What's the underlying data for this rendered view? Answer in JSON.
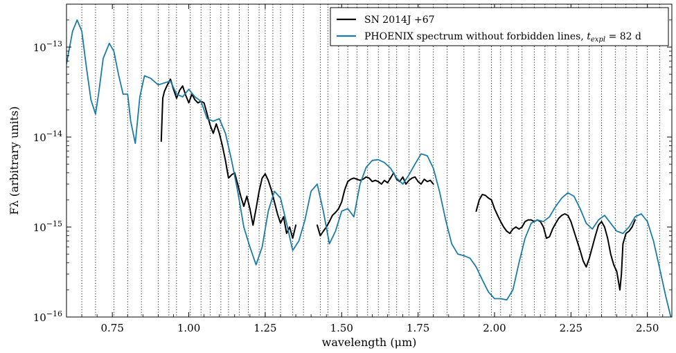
{
  "chart_data": {
    "type": "line",
    "title": "",
    "xlabel": "wavelength (μm)",
    "ylabel": "Fλ (arbitrary units)",
    "xlim": [
      0.6,
      2.58
    ],
    "ylim": [
      1e-16,
      3e-13
    ],
    "yscale": "log",
    "grid": "vertical dotted lines at line wavelengths",
    "x_ticks": [
      0.75,
      1.0,
      1.25,
      1.5,
      1.75,
      2.0,
      2.25,
      2.5
    ],
    "x_tick_labels": [
      "0.75",
      "1.00",
      "1.25",
      "1.50",
      "1.75",
      "2.00",
      "2.25",
      "2.50"
    ],
    "y_ticks": [
      1e-16,
      1e-15,
      1e-14,
      1e-13
    ],
    "y_tick_labels": [
      {
        "base": "10",
        "exp": "−16"
      },
      {
        "base": "10",
        "exp": "−15"
      },
      {
        "base": "10",
        "exp": "−14"
      },
      {
        "base": "10",
        "exp": "−13"
      }
    ],
    "vlines": [
      0.65,
      0.695,
      0.755,
      0.8,
      0.845,
      0.9,
      0.935,
      0.96,
      1.005,
      1.04,
      1.07,
      1.105,
      1.13,
      1.165,
      1.195,
      1.23,
      1.25,
      1.275,
      1.3,
      1.34,
      1.375,
      1.43,
      1.455,
      1.49,
      1.52,
      1.55,
      1.585,
      1.62,
      1.655,
      1.68,
      1.72,
      1.755,
      1.8,
      1.845,
      1.9,
      1.95,
      1.99,
      2.02,
      2.055,
      2.09,
      2.13,
      2.165,
      2.2,
      2.24,
      2.275,
      2.31,
      2.35,
      2.395,
      2.43,
      2.465,
      2.5,
      2.54
    ],
    "legend": {
      "placement": "top-right",
      "entries": [
        {
          "label": "SN 2014J +67",
          "color": "#000000"
        },
        {
          "label": "PHOENIX spectrum without forbidden lines, ",
          "math_var": "t",
          "math_sub": "expl",
          "math_tail": " = 82 d",
          "color": "#1a7bab"
        }
      ]
    },
    "series": [
      {
        "name": "SN 2014J +67",
        "color": "#000000",
        "segments": [
          {
            "x": [
              0.91,
              0.915,
              0.92,
              0.925,
              0.93,
              0.94,
              0.95,
              0.96,
              0.97,
              0.98,
              0.99,
              1.0,
              1.01,
              1.02,
              1.03,
              1.04,
              1.05,
              1.06,
              1.07,
              1.08,
              1.09,
              1.1,
              1.11,
              1.12,
              1.13,
              1.14,
              1.15,
              1.16,
              1.17,
              1.18,
              1.19,
              1.2,
              1.21,
              1.22,
              1.23,
              1.24,
              1.25,
              1.26,
              1.27,
              1.28,
              1.29,
              1.3,
              1.31,
              1.32,
              1.33,
              1.34,
              1.35
            ],
            "y": [
              9e-15,
              2.7e-14,
              3.2e-14,
              3.5e-14,
              3.8e-14,
              4.4e-14,
              3.4e-14,
              2.7e-14,
              3.3e-14,
              3.7e-14,
              2.9e-14,
              2.4e-14,
              3e-14,
              2.6e-14,
              2.4e-14,
              2.5e-14,
              2.4e-14,
              1.8e-14,
              1.35e-14,
              1.1e-14,
              1.4e-14,
              1.1e-14,
              8e-15,
              5.5e-15,
              3.5e-15,
              3.8e-15,
              4e-15,
              3e-15,
              2.2e-15,
              1.7e-15,
              2.2e-15,
              1.6e-15,
              1.05e-15,
              1.6e-15,
              2.5e-15,
              3.5e-15,
              3.9e-15,
              3.3e-15,
              2.6e-15,
              1.9e-15,
              1.4e-15,
              1.1e-15,
              1.3e-15,
              8.5e-16,
              1e-15,
              7.5e-16,
              1.05e-15
            ]
          },
          {
            "x": [
              1.42,
              1.43,
              1.44,
              1.45,
              1.46,
              1.47,
              1.48,
              1.49,
              1.5,
              1.51,
              1.52,
              1.53,
              1.54,
              1.55,
              1.56,
              1.57,
              1.58,
              1.59,
              1.6,
              1.61,
              1.62,
              1.63,
              1.64,
              1.65,
              1.66,
              1.67,
              1.68,
              1.69,
              1.7,
              1.71,
              1.72,
              1.73,
              1.74,
              1.75,
              1.76,
              1.77,
              1.78,
              1.79,
              1.8
            ],
            "y": [
              1.05e-15,
              8e-16,
              9e-16,
              1e-15,
              1.15e-15,
              1.35e-15,
              1.45e-15,
              1.6e-15,
              1.9e-15,
              2.6e-15,
              3.2e-15,
              3.4e-15,
              3.5e-15,
              3.4e-15,
              3.3e-15,
              3.4e-15,
              3.6e-15,
              3.5e-15,
              3.2e-15,
              3.3e-15,
              3.2e-15,
              3e-15,
              3.3e-15,
              3.1e-15,
              3.5e-15,
              4e-15,
              3.4e-15,
              3.2e-15,
              3.6e-15,
              3e-15,
              3.3e-15,
              3.5e-15,
              3.6e-15,
              3.2e-15,
              3e-15,
              3.4e-15,
              3.2e-15,
              3.3e-15,
              3e-15
            ]
          },
          {
            "x": [
              1.94,
              1.95,
              1.96,
              1.97,
              1.98,
              1.99,
              2.0,
              2.01,
              2.02,
              2.03,
              2.04,
              2.05,
              2.06,
              2.07,
              2.08,
              2.09,
              2.1,
              2.11,
              2.12,
              2.13,
              2.14,
              2.15,
              2.16,
              2.17,
              2.18,
              2.19,
              2.2,
              2.21,
              2.22,
              2.23,
              2.24,
              2.25,
              2.26,
              2.27,
              2.28,
              2.29,
              2.3,
              2.31,
              2.32,
              2.33,
              2.34,
              2.35,
              2.36,
              2.37,
              2.38,
              2.39,
              2.4,
              2.41,
              2.415,
              2.42,
              2.43,
              2.44,
              2.45,
              2.46
            ],
            "y": [
              1.5e-15,
              2e-15,
              2.3e-15,
              2.25e-15,
              2.1e-15,
              2e-15,
              1.6e-15,
              1.35e-15,
              1.15e-15,
              1e-15,
              9e-16,
              8.5e-16,
              9.5e-16,
              1e-15,
              9.5e-16,
              1e-15,
              1.15e-15,
              1.2e-15,
              1.2e-15,
              1.15e-15,
              1.2e-15,
              1.15e-15,
              1e-15,
              7.5e-16,
              7.8e-16,
              9.5e-16,
              1.1e-15,
              1.25e-15,
              1.35e-15,
              1.4e-15,
              1.35e-15,
              1.15e-15,
              9e-16,
              7e-16,
              5.5e-16,
              4.2e-16,
              3.6e-16,
              4.5e-16,
              6e-16,
              8e-16,
              1.05e-15,
              1.15e-15,
              1e-15,
              7.5e-16,
              5e-16,
              3.8e-16,
              3.2e-16,
              2e-16,
              3e-16,
              6.5e-16,
              8.5e-16,
              9e-16,
              1e-15,
              1.2e-15
            ]
          }
        ]
      },
      {
        "name": "PHOENIX spectrum without forbidden lines, t_expl = 82 d",
        "color": "#1a7bab",
        "segments": [
          {
            "x": [
              0.6,
              0.62,
              0.635,
              0.65,
              0.665,
              0.68,
              0.695,
              0.705,
              0.72,
              0.74,
              0.755,
              0.77,
              0.785,
              0.8,
              0.81,
              0.825,
              0.84,
              0.855,
              0.875,
              0.9,
              0.92,
              0.94,
              0.96,
              0.98,
              1.0,
              1.02,
              1.04,
              1.06,
              1.08,
              1.1,
              1.12,
              1.14,
              1.16,
              1.18,
              1.2,
              1.22,
              1.24,
              1.26,
              1.28,
              1.3,
              1.32,
              1.34,
              1.36,
              1.38,
              1.4,
              1.42,
              1.44,
              1.46,
              1.48,
              1.5,
              1.52,
              1.54,
              1.56,
              1.58,
              1.6,
              1.62,
              1.64,
              1.66,
              1.68,
              1.7,
              1.72,
              1.74,
              1.76,
              1.78,
              1.8,
              1.82,
              1.84,
              1.86,
              1.88,
              1.9,
              1.92,
              1.94,
              1.96,
              1.98,
              2.0,
              2.02,
              2.04,
              2.06,
              2.08,
              2.1,
              2.12,
              2.14,
              2.16,
              2.18,
              2.2,
              2.22,
              2.24,
              2.26,
              2.28,
              2.3,
              2.32,
              2.34,
              2.36,
              2.38,
              2.4,
              2.42,
              2.44,
              2.46,
              2.48,
              2.5,
              2.52,
              2.54,
              2.56,
              2.58
            ],
            "y": [
              6.5e-14,
              1.5e-13,
              2e-13,
              1.5e-13,
              6e-14,
              2.6e-14,
              1.8e-14,
              3e-14,
              7.5e-14,
              1.1e-13,
              9e-14,
              5e-14,
              3e-14,
              3e-14,
              1.5e-14,
              8.5e-15,
              2.8e-14,
              4.8e-14,
              4.5e-14,
              3.8e-14,
              4e-14,
              4.2e-14,
              3e-14,
              2.8e-14,
              3.4e-14,
              2.8e-14,
              2.5e-14,
              1.6e-14,
              1.5e-14,
              1.6e-14,
              1.1e-14,
              5.5e-15,
              2.5e-15,
              1e-15,
              6e-16,
              3.8e-16,
              6e-16,
              1.5e-15,
              2.5e-15,
              2.1e-15,
              1.1e-15,
              5.5e-16,
              7e-16,
              1.2e-15,
              2.5e-15,
              3e-15,
              1.5e-15,
              6.5e-16,
              9e-16,
              1.5e-15,
              1.6e-15,
              1.3e-15,
              3e-15,
              4.6e-15,
              5.5e-15,
              5.6e-15,
              5.2e-15,
              4.5e-15,
              3.5e-15,
              3e-15,
              3.8e-15,
              5e-15,
              6.5e-15,
              6.2e-15,
              4.5e-15,
              2.5e-15,
              1.2e-15,
              6.5e-16,
              5e-16,
              4.8e-16,
              4.5e-16,
              3.6e-16,
              2.6e-16,
              1.9e-16,
              1.6e-16,
              1.6e-16,
              1.55e-16,
              2e-16,
              4e-16,
              7.5e-16,
              1.1e-15,
              1.2e-15,
              1.15e-15,
              1.3e-15,
              1.7e-15,
              2.1e-15,
              2.4e-15,
              2.2e-15,
              1.6e-15,
              1.1e-15,
              9.5e-16,
              1.2e-15,
              1.35e-15,
              1.1e-15,
              9e-16,
              8.5e-16,
              1e-15,
              1.3e-15,
              1.4e-15,
              1.15e-15,
              7e-16,
              3.5e-16,
              1.7e-16,
              9e-17
            ]
          }
        ]
      }
    ]
  }
}
